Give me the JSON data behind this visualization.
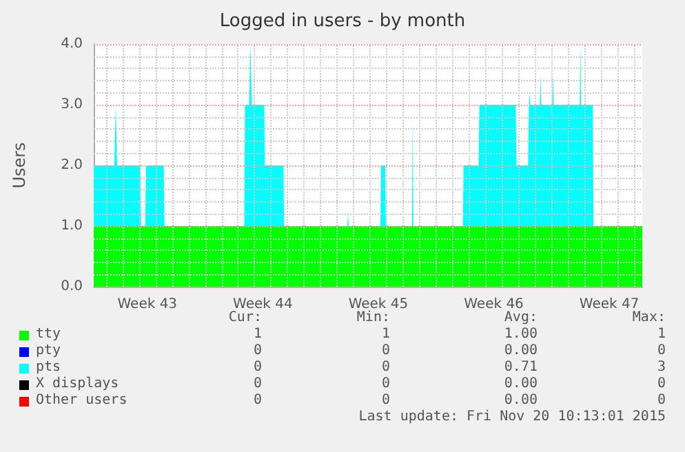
{
  "chart_data": {
    "type": "area",
    "title": "Logged in users - by month",
    "ylabel": "Users",
    "stacked": true,
    "grid": true,
    "legend": "bottom",
    "x": [
      "2015-10-19T06:00",
      "2015-10-20T12:00",
      "2015-10-20T14:00",
      "2015-10-20T16:00",
      "2015-10-22T02:00",
      "2015-10-22T03:00",
      "2015-10-22T09:00",
      "2015-10-22T10:00",
      "2015-10-23T12:00",
      "2015-10-23T13:00",
      "2015-10-28T09:00",
      "2015-10-28T10:00",
      "2015-10-28T16:00",
      "2015-10-28T18:00",
      "2015-10-28T20:00",
      "2015-10-29T14:00",
      "2015-10-29T15:00",
      "2015-10-30T18:00",
      "2015-10-30T19:00",
      "2015-11-03T15:00",
      "2015-11-03T16:00",
      "2015-11-03T17:00",
      "2015-11-05T15:00",
      "2015-11-05T16:00",
      "2015-11-05T22:00",
      "2015-11-05T23:00",
      "2015-11-07T13:00",
      "2015-11-07T14:00",
      "2015-11-07T15:00",
      "2015-11-10T15:00",
      "2015-11-10T16:00",
      "2015-11-11T14:00",
      "2015-11-11T15:00",
      "2015-11-13T20:00",
      "2015-11-13T21:00",
      "2015-11-14T14:00",
      "2015-11-14T15:00",
      "2015-11-14T16:00",
      "2015-11-14T17:00",
      "2015-11-15T07:00",
      "2015-11-15T08:00",
      "2015-11-15T09:00",
      "2015-11-16T01:00",
      "2015-11-16T02:00",
      "2015-11-16T03:00",
      "2015-11-17T17:00",
      "2015-11-17T18:00",
      "2015-11-17T19:00",
      "2015-11-18T12:00",
      "2015-11-18T13:00",
      "2015-11-21T12:00"
    ],
    "series": [
      {
        "name": "tty",
        "color": "#00ff00",
        "values": [
          1,
          1,
          1,
          1,
          1,
          1,
          1,
          1,
          1,
          1,
          1,
          1,
          1,
          1,
          1,
          1,
          1,
          1,
          1,
          1,
          1,
          1,
          1,
          1,
          1,
          1,
          1,
          1,
          1,
          1,
          1,
          1,
          1,
          1,
          1,
          1,
          1,
          1,
          1,
          1,
          1,
          1,
          1,
          1,
          1,
          1,
          1,
          1,
          1,
          1,
          1
        ]
      },
      {
        "name": "pty",
        "color": "#0000ff",
        "values": [
          null,
          null,
          null,
          null,
          null,
          null,
          null,
          null,
          null,
          null,
          null,
          null,
          null,
          null,
          null,
          null,
          null,
          null,
          null,
          null,
          null,
          null,
          null,
          null,
          null,
          null,
          null,
          null,
          null,
          null,
          null,
          null,
          null,
          null,
          null,
          null,
          null,
          null,
          null,
          null,
          null,
          null,
          null,
          null,
          null,
          null,
          null,
          null,
          null,
          null,
          null
        ]
      },
      {
        "name": "pts",
        "color": "#00ffff",
        "values": [
          1,
          1,
          2,
          1,
          1,
          0,
          0,
          1,
          1,
          0,
          0,
          2,
          2,
          3,
          2,
          2,
          1,
          1,
          0,
          0,
          0.2,
          0,
          0,
          1,
          1,
          0,
          0,
          1.8,
          0,
          0,
          1,
          1,
          2,
          2,
          1,
          1,
          2,
          2.2,
          2,
          2,
          2.5,
          2,
          2,
          2.5,
          2,
          2,
          3,
          2,
          2,
          0,
          0
        ]
      },
      {
        "name": "X displays",
        "color": "#000000",
        "values": [
          null,
          null,
          null,
          null,
          null,
          null,
          null,
          null,
          null,
          null,
          null,
          null,
          null,
          null,
          null,
          null,
          null,
          null,
          null,
          null,
          null,
          null,
          null,
          null,
          null,
          null,
          null,
          null,
          null,
          null,
          null,
          null,
          null,
          null,
          null,
          null,
          null,
          null,
          null,
          null,
          null,
          null,
          null,
          null,
          null,
          null,
          null,
          null,
          null,
          null,
          null
        ]
      },
      {
        "name": "Other users",
        "color": "#ff0000",
        "values": [
          null,
          null,
          null,
          null,
          null,
          null,
          null,
          null,
          null,
          null,
          null,
          null,
          null,
          null,
          null,
          null,
          null,
          null,
          null,
          null,
          null,
          null,
          null,
          null,
          null,
          null,
          null,
          null,
          null,
          null,
          null,
          null,
          null,
          null,
          null,
          null,
          null,
          null,
          null,
          null,
          null,
          null,
          null,
          null,
          null,
          null,
          null,
          null,
          null,
          null,
          null
        ]
      }
    ],
    "xlim": [
      "2015-10-19T06:00",
      "2015-11-21T12:00"
    ],
    "xticks": [
      {
        "value": "2015-10-20T00:00",
        "label": null
      },
      {
        "value": "2015-10-21T00:00",
        "label": null
      },
      {
        "value": "2015-10-22T00:00",
        "label": null
      },
      {
        "value": "2015-10-22T12:00",
        "label": "Week 43"
      },
      {
        "value": "2015-10-23T00:00",
        "label": null
      },
      {
        "value": "2015-10-24T00:00",
        "label": null
      },
      {
        "value": "2015-10-25T00:00",
        "label": null
      },
      {
        "value": "2015-10-26T00:00",
        "label": null
      },
      {
        "value": "2015-10-27T00:00",
        "label": null
      },
      {
        "value": "2015-10-28T00:00",
        "label": null
      },
      {
        "value": "2015-10-29T00:00",
        "label": null
      },
      {
        "value": "2015-10-29T12:00",
        "label": "Week 44"
      },
      {
        "value": "2015-10-30T00:00",
        "label": null
      },
      {
        "value": "2015-10-31T00:00",
        "label": null
      },
      {
        "value": "2015-11-01T00:00",
        "label": null
      },
      {
        "value": "2015-11-02T00:00",
        "label": null
      },
      {
        "value": "2015-11-03T00:00",
        "label": null
      },
      {
        "value": "2015-11-04T00:00",
        "label": null
      },
      {
        "value": "2015-11-05T00:00",
        "label": null
      },
      {
        "value": "2015-11-05T12:00",
        "label": "Week 45"
      },
      {
        "value": "2015-11-06T00:00",
        "label": null
      },
      {
        "value": "2015-11-07T00:00",
        "label": null
      },
      {
        "value": "2015-11-08T00:00",
        "label": null
      },
      {
        "value": "2015-11-09T00:00",
        "label": null
      },
      {
        "value": "2015-11-10T00:00",
        "label": null
      },
      {
        "value": "2015-11-11T00:00",
        "label": null
      },
      {
        "value": "2015-11-12T00:00",
        "label": null
      },
      {
        "value": "2015-11-12T12:00",
        "label": "Week 46"
      },
      {
        "value": "2015-11-13T00:00",
        "label": null
      },
      {
        "value": "2015-11-14T00:00",
        "label": null
      },
      {
        "value": "2015-11-15T00:00",
        "label": null
      },
      {
        "value": "2015-11-16T00:00",
        "label": null
      },
      {
        "value": "2015-11-17T00:00",
        "label": null
      },
      {
        "value": "2015-11-18T00:00",
        "label": null
      },
      {
        "value": "2015-11-19T00:00",
        "label": null
      },
      {
        "value": "2015-11-19T12:00",
        "label": "Week 47"
      },
      {
        "value": "2015-11-20T00:00",
        "label": null
      },
      {
        "value": "2015-11-21T00:00",
        "label": null
      }
    ],
    "ylim": [
      0,
      4
    ],
    "yticks": [
      {
        "value": 0,
        "label": "0.0"
      },
      {
        "value": 0.2,
        "label": null
      },
      {
        "value": 0.4,
        "label": null
      },
      {
        "value": 0.6,
        "label": null
      },
      {
        "value": 0.8,
        "label": null
      },
      {
        "value": 1,
        "label": "1.0"
      },
      {
        "value": 1.2,
        "label": null
      },
      {
        "value": 1.4,
        "label": null
      },
      {
        "value": 1.6,
        "label": null
      },
      {
        "value": 1.8,
        "label": null
      },
      {
        "value": 2,
        "label": "2.0"
      },
      {
        "value": 2.2,
        "label": null
      },
      {
        "value": 2.4,
        "label": null
      },
      {
        "value": 2.6,
        "label": null
      },
      {
        "value": 2.8,
        "label": null
      },
      {
        "value": 3,
        "label": "3.0"
      },
      {
        "value": 3.2,
        "label": null
      },
      {
        "value": 3.4,
        "label": null
      },
      {
        "value": 3.6,
        "label": null
      },
      {
        "value": 3.8,
        "label": null
      },
      {
        "value": 4,
        "label": "4.0"
      }
    ],
    "annotations": [
      "Cur:",
      "Min:",
      "Avg:",
      "Max:",
      "1",
      "1",
      "1.00",
      "1",
      "0",
      "0",
      "0.00",
      "0",
      "0",
      "0",
      "0.71",
      "3",
      "0",
      "0",
      "0.00",
      "0",
      "0",
      "0",
      "0.00",
      "0",
      "Last update: Fri Nov 20 10:13:01 2015"
    ]
  }
}
